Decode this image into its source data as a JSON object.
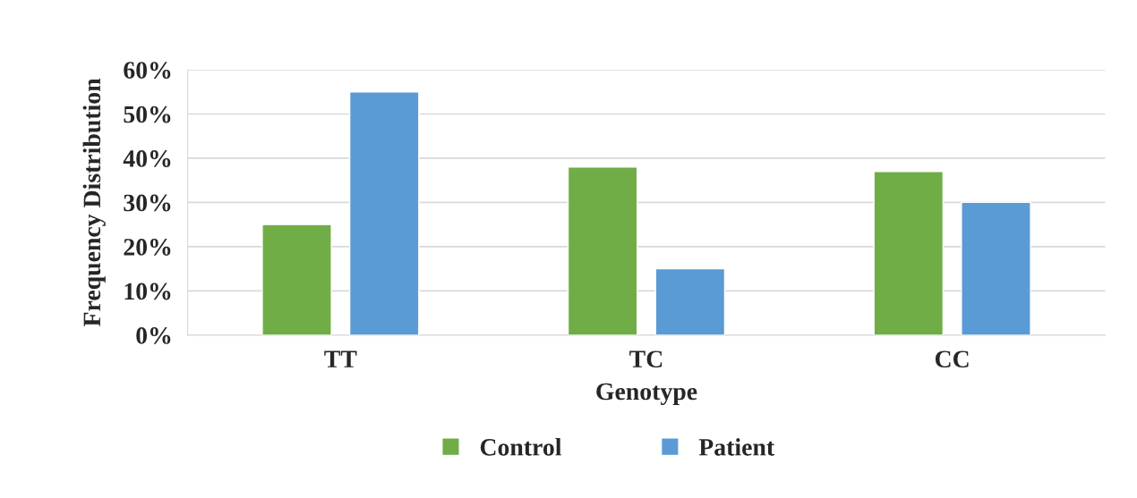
{
  "chart_data": {
    "type": "bar",
    "xlabel": "Genotype",
    "ylabel": "Frequency Distribution",
    "categories": [
      "TT",
      "TC",
      "CC"
    ],
    "series": [
      {
        "name": "Control",
        "color": "#70ad47",
        "values": [
          25,
          38,
          37
        ]
      },
      {
        "name": "Patient",
        "color": "#5b9bd5",
        "values": [
          55,
          15,
          30
        ]
      }
    ],
    "ylim": [
      0,
      60
    ],
    "yticks": [
      {
        "value": 0,
        "label": "0%"
      },
      {
        "value": 10,
        "label": "10%"
      },
      {
        "value": 20,
        "label": "20%"
      },
      {
        "value": 30,
        "label": "30%"
      },
      {
        "value": 40,
        "label": "40%"
      },
      {
        "value": 50,
        "label": "50%"
      },
      {
        "value": 60,
        "label": "60%"
      }
    ],
    "grid": "y",
    "legend": "bottom"
  }
}
